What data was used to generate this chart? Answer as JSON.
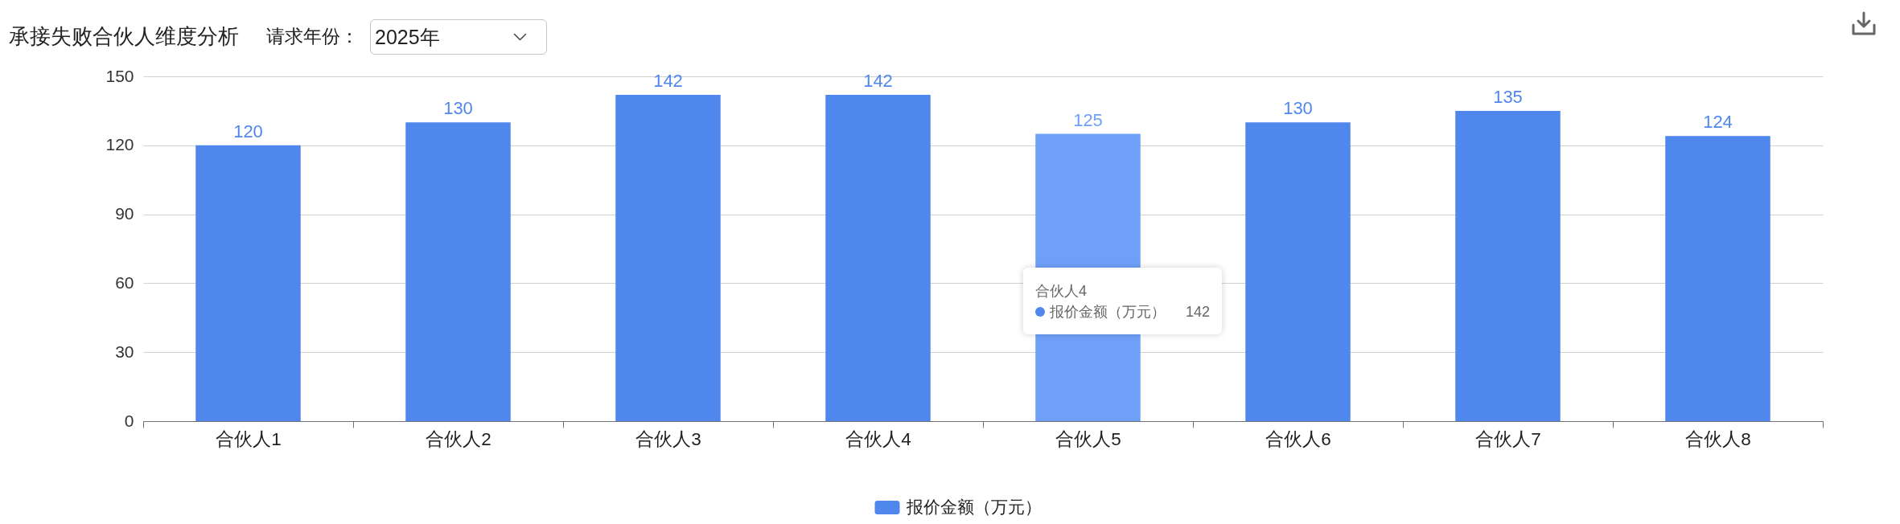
{
  "chart_data": {
    "type": "bar",
    "title": "承接失败合伙人维度分析",
    "annotations": [
      "请求年份：",
      "2025年",
      "合伙人4",
      "报价金额（万元）",
      "142"
    ],
    "categories": [
      "合伙人1",
      "合伙人2",
      "合伙人3",
      "合伙人4",
      "合伙人5",
      "合伙人6",
      "合伙人7",
      "合伙人8"
    ],
    "series": [
      {
        "name": "报价金额（万元）",
        "color": "#5087ec",
        "colors": [
          "#5087ec",
          "#5087ec",
          "#5087ec",
          "#5087ec",
          "#6fa0f8",
          "#5087ec",
          "#5087ec",
          "#5087ec"
        ],
        "values": [
          120,
          130,
          142,
          142,
          125,
          130,
          135,
          124
        ]
      }
    ],
    "ylim": [
      0,
      150
    ],
    "yticks": [
      0,
      30,
      60,
      90,
      120,
      150
    ],
    "grid": "y",
    "legend": "bottom",
    "data_labels": true
  }
}
